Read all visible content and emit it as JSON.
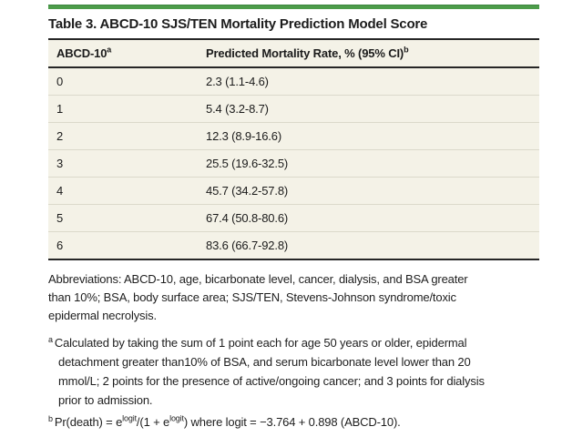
{
  "accent_color": "#4c9c4a",
  "title": "Table 3. ABCD-10 SJS/TEN Mortality Prediction Model Score",
  "table": {
    "columns": [
      {
        "label": "ABCD-10",
        "sup": "a"
      },
      {
        "label": "Predicted Mortality Rate, % (95% CI)",
        "sup": "b"
      }
    ],
    "rows": [
      {
        "score": "0",
        "rate": "2.3 (1.1-4.6)"
      },
      {
        "score": "1",
        "rate": "5.4 (3.2-8.7)"
      },
      {
        "score": "2",
        "rate": "12.3 (8.9-16.6)"
      },
      {
        "score": "3",
        "rate": "25.5 (19.6-32.5)"
      },
      {
        "score": "4",
        "rate": "45.7 (34.2-57.8)"
      },
      {
        "score": "5",
        "rate": "67.4 (50.8-80.6)"
      },
      {
        "score": "6",
        "rate": "83.6 (66.7-92.8)"
      }
    ]
  },
  "footnotes": {
    "abbreviations": "Abbreviations: ABCD-10, age, bicarbonate level, cancer, dialysis, and BSA greater than 10%; BSA, body surface area; SJS/TEN, Stevens-Johnson syndrome/toxic epidermal necrolysis.",
    "a": {
      "marker": "a",
      "text": "Calculated by taking the sum of 1 point each for age 50 years or older, epidermal detachment greater than10% of BSA, and serum bicarbonate level lower than 20 mmol/L; 2 points for the presence of active/ongoing cancer; and 3 points for dialysis prior to admission."
    },
    "b": {
      "marker": "b",
      "pre": "Pr(death) = e",
      "sup1": "logit",
      "mid": "/(1 + e",
      "sup2": "logit",
      "post": ") where logit = −3.764 + 0.898 (ABCD-10)."
    }
  },
  "chart_data": {
    "type": "table",
    "title": "Table 3. ABCD-10 SJS/TEN Mortality Prediction Model Score",
    "columns": [
      "ABCD-10",
      "Predicted Mortality Rate, % (95% CI)"
    ],
    "rows": [
      [
        "0",
        "2.3 (1.1-4.6)"
      ],
      [
        "1",
        "5.4 (3.2-8.7)"
      ],
      [
        "2",
        "12.3 (8.9-16.6)"
      ],
      [
        "3",
        "25.5 (19.6-32.5)"
      ],
      [
        "4",
        "45.7 (34.2-57.8)"
      ],
      [
        "5",
        "67.4 (50.8-80.6)"
      ],
      [
        "6",
        "83.6 (66.7-92.8)"
      ]
    ]
  }
}
